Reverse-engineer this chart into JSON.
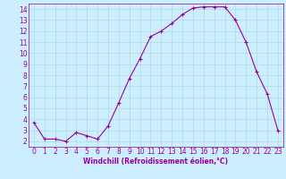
{
  "x": [
    0,
    1,
    2,
    3,
    4,
    5,
    6,
    7,
    8,
    9,
    10,
    11,
    12,
    13,
    14,
    15,
    16,
    17,
    18,
    19,
    20,
    21,
    22,
    23
  ],
  "y": [
    3.7,
    2.2,
    2.2,
    2.0,
    2.8,
    2.5,
    2.2,
    3.4,
    5.5,
    7.7,
    9.5,
    11.5,
    12.0,
    12.7,
    13.5,
    14.1,
    14.2,
    14.2,
    14.2,
    13.0,
    11.0,
    8.3,
    6.3,
    3.0
  ],
  "line_color": "#990099",
  "marker": "+",
  "marker_size": 3,
  "line_width": 0.8,
  "bg_color": "#cceeff",
  "grid_color": "#aadddd",
  "xlabel": "Windchill (Refroidissement éolien,°C)",
  "xlabel_fontsize": 5.5,
  "tick_fontsize": 5.5,
  "xlim": [
    -0.5,
    23.5
  ],
  "ylim": [
    1.5,
    14.5
  ],
  "yticks": [
    2,
    3,
    4,
    5,
    6,
    7,
    8,
    9,
    10,
    11,
    12,
    13,
    14
  ],
  "xticks": [
    0,
    1,
    2,
    3,
    4,
    5,
    6,
    7,
    8,
    9,
    10,
    11,
    12,
    13,
    14,
    15,
    16,
    17,
    18,
    19,
    20,
    21,
    22,
    23
  ]
}
